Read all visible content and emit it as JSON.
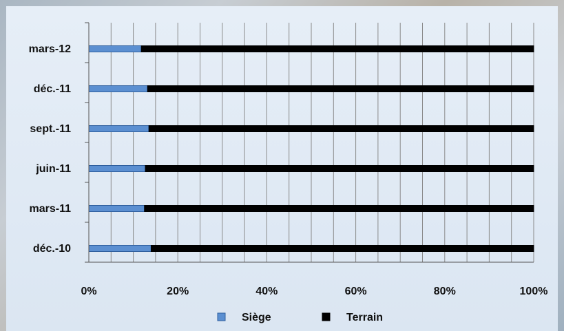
{
  "chart_data": {
    "type": "bar",
    "orientation": "horizontal",
    "stacked": "percent",
    "categories": [
      "déc.-10",
      "mars-11",
      "juin-11",
      "sept.-11",
      "déc.-11",
      "mars-12"
    ],
    "series": [
      {
        "name": "Siège",
        "values": [
          14,
          12.5,
          12.7,
          13.5,
          13.2,
          11.8
        ],
        "color": "#5b8fd1"
      },
      {
        "name": "Terrain",
        "values": [
          86,
          87.5,
          87.3,
          86.5,
          86.8,
          88.2
        ],
        "color": "#000000"
      }
    ],
    "xlim": [
      0,
      100
    ],
    "x_ticks": [
      "0%",
      "20%",
      "40%",
      "60%",
      "80%",
      "100%"
    ],
    "grid": "vertical",
    "legend_position": "bottom"
  }
}
